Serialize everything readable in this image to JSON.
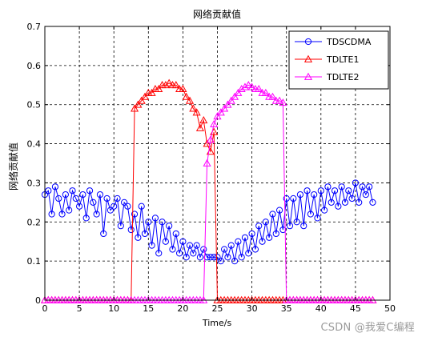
{
  "watermark": "CSDN @我爱C编程",
  "chart_data": {
    "type": "line",
    "title": "网络贡献值",
    "xlabel": "Time/s",
    "ylabel": "网络贡献值",
    "xlim": [
      0,
      50
    ],
    "ylim": [
      0,
      0.7
    ],
    "xticks": [
      "0",
      "5",
      "10",
      "15",
      "20",
      "25",
      "30",
      "35",
      "40",
      "45",
      "50"
    ],
    "yticks": [
      "0",
      "0.1",
      "0.2",
      "0.3",
      "0.4",
      "0.5",
      "0.6",
      "0.7"
    ],
    "grid": true,
    "legend_position": "top-right",
    "series": [
      {
        "name": "TDSCDMA",
        "color": "#0000ff",
        "marker": "circle",
        "x": [
          0,
          0.5,
          1,
          1.5,
          2,
          2.5,
          3,
          3.5,
          4,
          4.5,
          5,
          5.5,
          6,
          6.5,
          7,
          7.5,
          8,
          8.5,
          9,
          9.5,
          10,
          10.5,
          11,
          11.5,
          12,
          12.5,
          13,
          13.5,
          14,
          14.5,
          15,
          15.5,
          16,
          16.5,
          17,
          17.5,
          18,
          18.5,
          19,
          19.5,
          20,
          20.5,
          21,
          21.5,
          22,
          22.5,
          23,
          23.5,
          24,
          24.5,
          25,
          25.5,
          26,
          26.5,
          27,
          27.5,
          28,
          28.5,
          29,
          29.5,
          30,
          30.5,
          31,
          31.5,
          32,
          32.5,
          33,
          33.5,
          34,
          34.5,
          35,
          35.5,
          36,
          36.5,
          37,
          37.5,
          38,
          38.5,
          39,
          39.5,
          40,
          40.5,
          41,
          41.5,
          42,
          42.5,
          43,
          43.5,
          44,
          44.5,
          45,
          45.5,
          46,
          46.5,
          47,
          47.5
        ],
        "y": [
          0.27,
          0.28,
          0.22,
          0.29,
          0.26,
          0.22,
          0.27,
          0.23,
          0.28,
          0.26,
          0.24,
          0.27,
          0.21,
          0.28,
          0.25,
          0.22,
          0.27,
          0.17,
          0.26,
          0.23,
          0.24,
          0.26,
          0.19,
          0.25,
          0.24,
          0.18,
          0.22,
          0.16,
          0.24,
          0.17,
          0.2,
          0.14,
          0.21,
          0.12,
          0.2,
          0.15,
          0.19,
          0.13,
          0.17,
          0.12,
          0.15,
          0.11,
          0.14,
          0.12,
          0.14,
          0.11,
          0.13,
          0.11,
          0.11,
          0.11,
          0.11,
          0.1,
          0.13,
          0.11,
          0.14,
          0.1,
          0.15,
          0.11,
          0.16,
          0.12,
          0.17,
          0.13,
          0.19,
          0.15,
          0.2,
          0.16,
          0.22,
          0.17,
          0.23,
          0.18,
          0.26,
          0.19,
          0.26,
          0.2,
          0.27,
          0.19,
          0.28,
          0.22,
          0.27,
          0.21,
          0.28,
          0.23,
          0.29,
          0.25,
          0.28,
          0.24,
          0.29,
          0.25,
          0.28,
          0.26,
          0.3,
          0.25,
          0.29,
          0.27,
          0.29,
          0.25
        ]
      },
      {
        "name": "TDLTE1",
        "color": "#ff0000",
        "marker": "triangle",
        "x": [
          0,
          0.5,
          1,
          1.5,
          2,
          2.5,
          3,
          3.5,
          4,
          4.5,
          5,
          5.5,
          6,
          6.5,
          7,
          7.5,
          8,
          8.5,
          9,
          9.5,
          10,
          10.5,
          11,
          11.5,
          12,
          12.5,
          13,
          13.5,
          14,
          14.5,
          15,
          15.5,
          16,
          16.5,
          17,
          17.5,
          18,
          18.5,
          19,
          19.5,
          20,
          20.5,
          21,
          21.5,
          22,
          22.5,
          23,
          23.5,
          24,
          24.5,
          25,
          25.5,
          26,
          26.5,
          27,
          27.5,
          28,
          28.5,
          29,
          29.5,
          30,
          30.5,
          31,
          31.5,
          32,
          32.5,
          33,
          33.5,
          34,
          34.5,
          35,
          35.5,
          36,
          36.5,
          37,
          37.5,
          38,
          38.5,
          39,
          39.5,
          40,
          40.5,
          41,
          41.5,
          42,
          42.5,
          43,
          43.5,
          44,
          44.5,
          45,
          45.5,
          46,
          46.5,
          47,
          47.5
        ],
        "y": [
          0,
          0,
          0,
          0,
          0,
          0,
          0,
          0,
          0,
          0,
          0,
          0,
          0,
          0,
          0,
          0,
          0,
          0,
          0,
          0,
          0,
          0,
          0,
          0,
          0,
          0,
          0.49,
          0.5,
          0.51,
          0.52,
          0.53,
          0.53,
          0.54,
          0.54,
          0.55,
          0.55,
          0.555,
          0.55,
          0.55,
          0.54,
          0.54,
          0.52,
          0.51,
          0.49,
          0.48,
          0.44,
          0.46,
          0.4,
          0.38,
          0.43,
          0,
          0,
          0,
          0,
          0,
          0,
          0,
          0,
          0,
          0,
          0,
          0,
          0,
          0,
          0,
          0,
          0,
          0,
          0,
          0,
          0,
          0,
          0,
          0,
          0,
          0,
          0,
          0,
          0,
          0,
          0,
          0,
          0,
          0,
          0,
          0,
          0,
          0,
          0,
          0,
          0,
          0,
          0,
          0,
          0,
          0
        ]
      },
      {
        "name": "TDLTE2",
        "color": "#ff00ff",
        "marker": "triangle",
        "x": [
          0,
          0.5,
          1,
          1.5,
          2,
          2.5,
          3,
          3.5,
          4,
          4.5,
          5,
          5.5,
          6,
          6.5,
          7,
          7.5,
          8,
          8.5,
          9,
          9.5,
          10,
          10.5,
          11,
          11.5,
          12,
          12.5,
          13,
          13.5,
          14,
          14.5,
          15,
          15.5,
          16,
          16.5,
          17,
          17.5,
          18,
          18.5,
          19,
          19.5,
          20,
          20.5,
          21,
          21.5,
          22,
          22.5,
          23,
          23.5,
          24,
          24.5,
          25,
          25.5,
          26,
          26.5,
          27,
          27.5,
          28,
          28.5,
          29,
          29.5,
          30,
          30.5,
          31,
          31.5,
          32,
          32.5,
          33,
          33.5,
          34,
          34.5,
          35,
          35.5,
          36,
          36.5,
          37,
          37.5,
          38,
          38.5,
          39,
          39.5,
          40,
          40.5,
          41,
          41.5,
          42,
          42.5,
          43,
          43.5,
          44,
          44.5,
          45,
          45.5,
          46,
          46.5,
          47,
          47.5
        ],
        "y": [
          0,
          0,
          0,
          0,
          0,
          0,
          0,
          0,
          0,
          0,
          0,
          0,
          0,
          0,
          0,
          0,
          0,
          0,
          0,
          0,
          0,
          0,
          0,
          0,
          0,
          0,
          0,
          0,
          0,
          0,
          0,
          0,
          0,
          0,
          0,
          0,
          0,
          0,
          0,
          0,
          0,
          0,
          0,
          0,
          0,
          0,
          0,
          0.35,
          0.41,
          0.45,
          0.47,
          0.48,
          0.49,
          0.5,
          0.51,
          0.52,
          0.53,
          0.54,
          0.545,
          0.55,
          0.545,
          0.54,
          0.54,
          0.53,
          0.53,
          0.52,
          0.52,
          0.51,
          0.51,
          0.505,
          0,
          0,
          0,
          0,
          0,
          0,
          0,
          0,
          0,
          0,
          0,
          0,
          0,
          0,
          0,
          0,
          0,
          0,
          0,
          0,
          0,
          0,
          0,
          0,
          0,
          0
        ]
      }
    ]
  }
}
